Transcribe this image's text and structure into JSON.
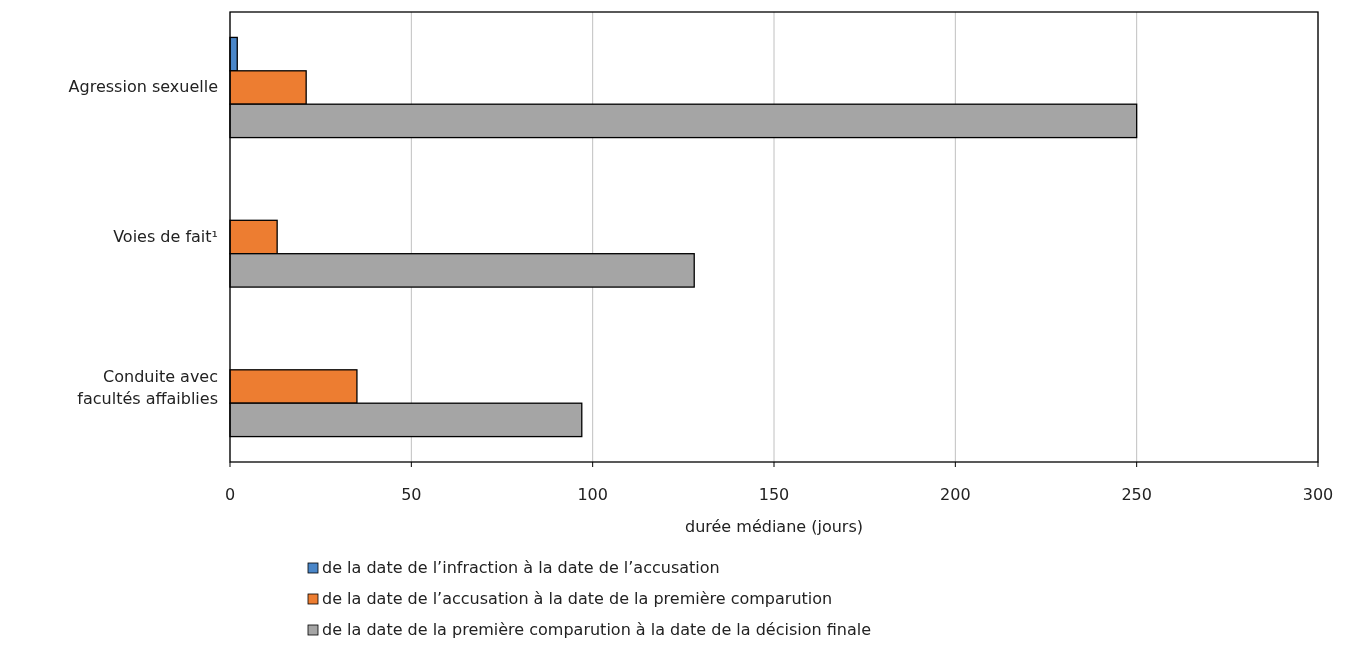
{
  "chart_data": {
    "type": "bar",
    "orientation": "horizontal",
    "xlabel": "durée médiane (jours)",
    "categories": [
      "Agression sexuelle",
      "Voies de fait¹",
      "Conduite avec facultés affaiblies"
    ],
    "series": [
      {
        "name": "de la date de l’infraction à la date de l’accusation",
        "color": "#4a86c8",
        "values": [
          2,
          null,
          null
        ]
      },
      {
        "name": "de la date de l’accusation à la date de la première comparution",
        "color": "#ed7d31",
        "values": [
          21,
          13,
          35
        ]
      },
      {
        "name": "de la date de la première comparution à la date de la décision finale",
        "color": "#a5a5a5",
        "values": [
          250,
          128,
          97
        ]
      }
    ],
    "xlim": [
      0,
      300
    ],
    "xticks": [
      0,
      50,
      100,
      150,
      200,
      250,
      300
    ],
    "grid": "x",
    "legend": "bottom"
  }
}
